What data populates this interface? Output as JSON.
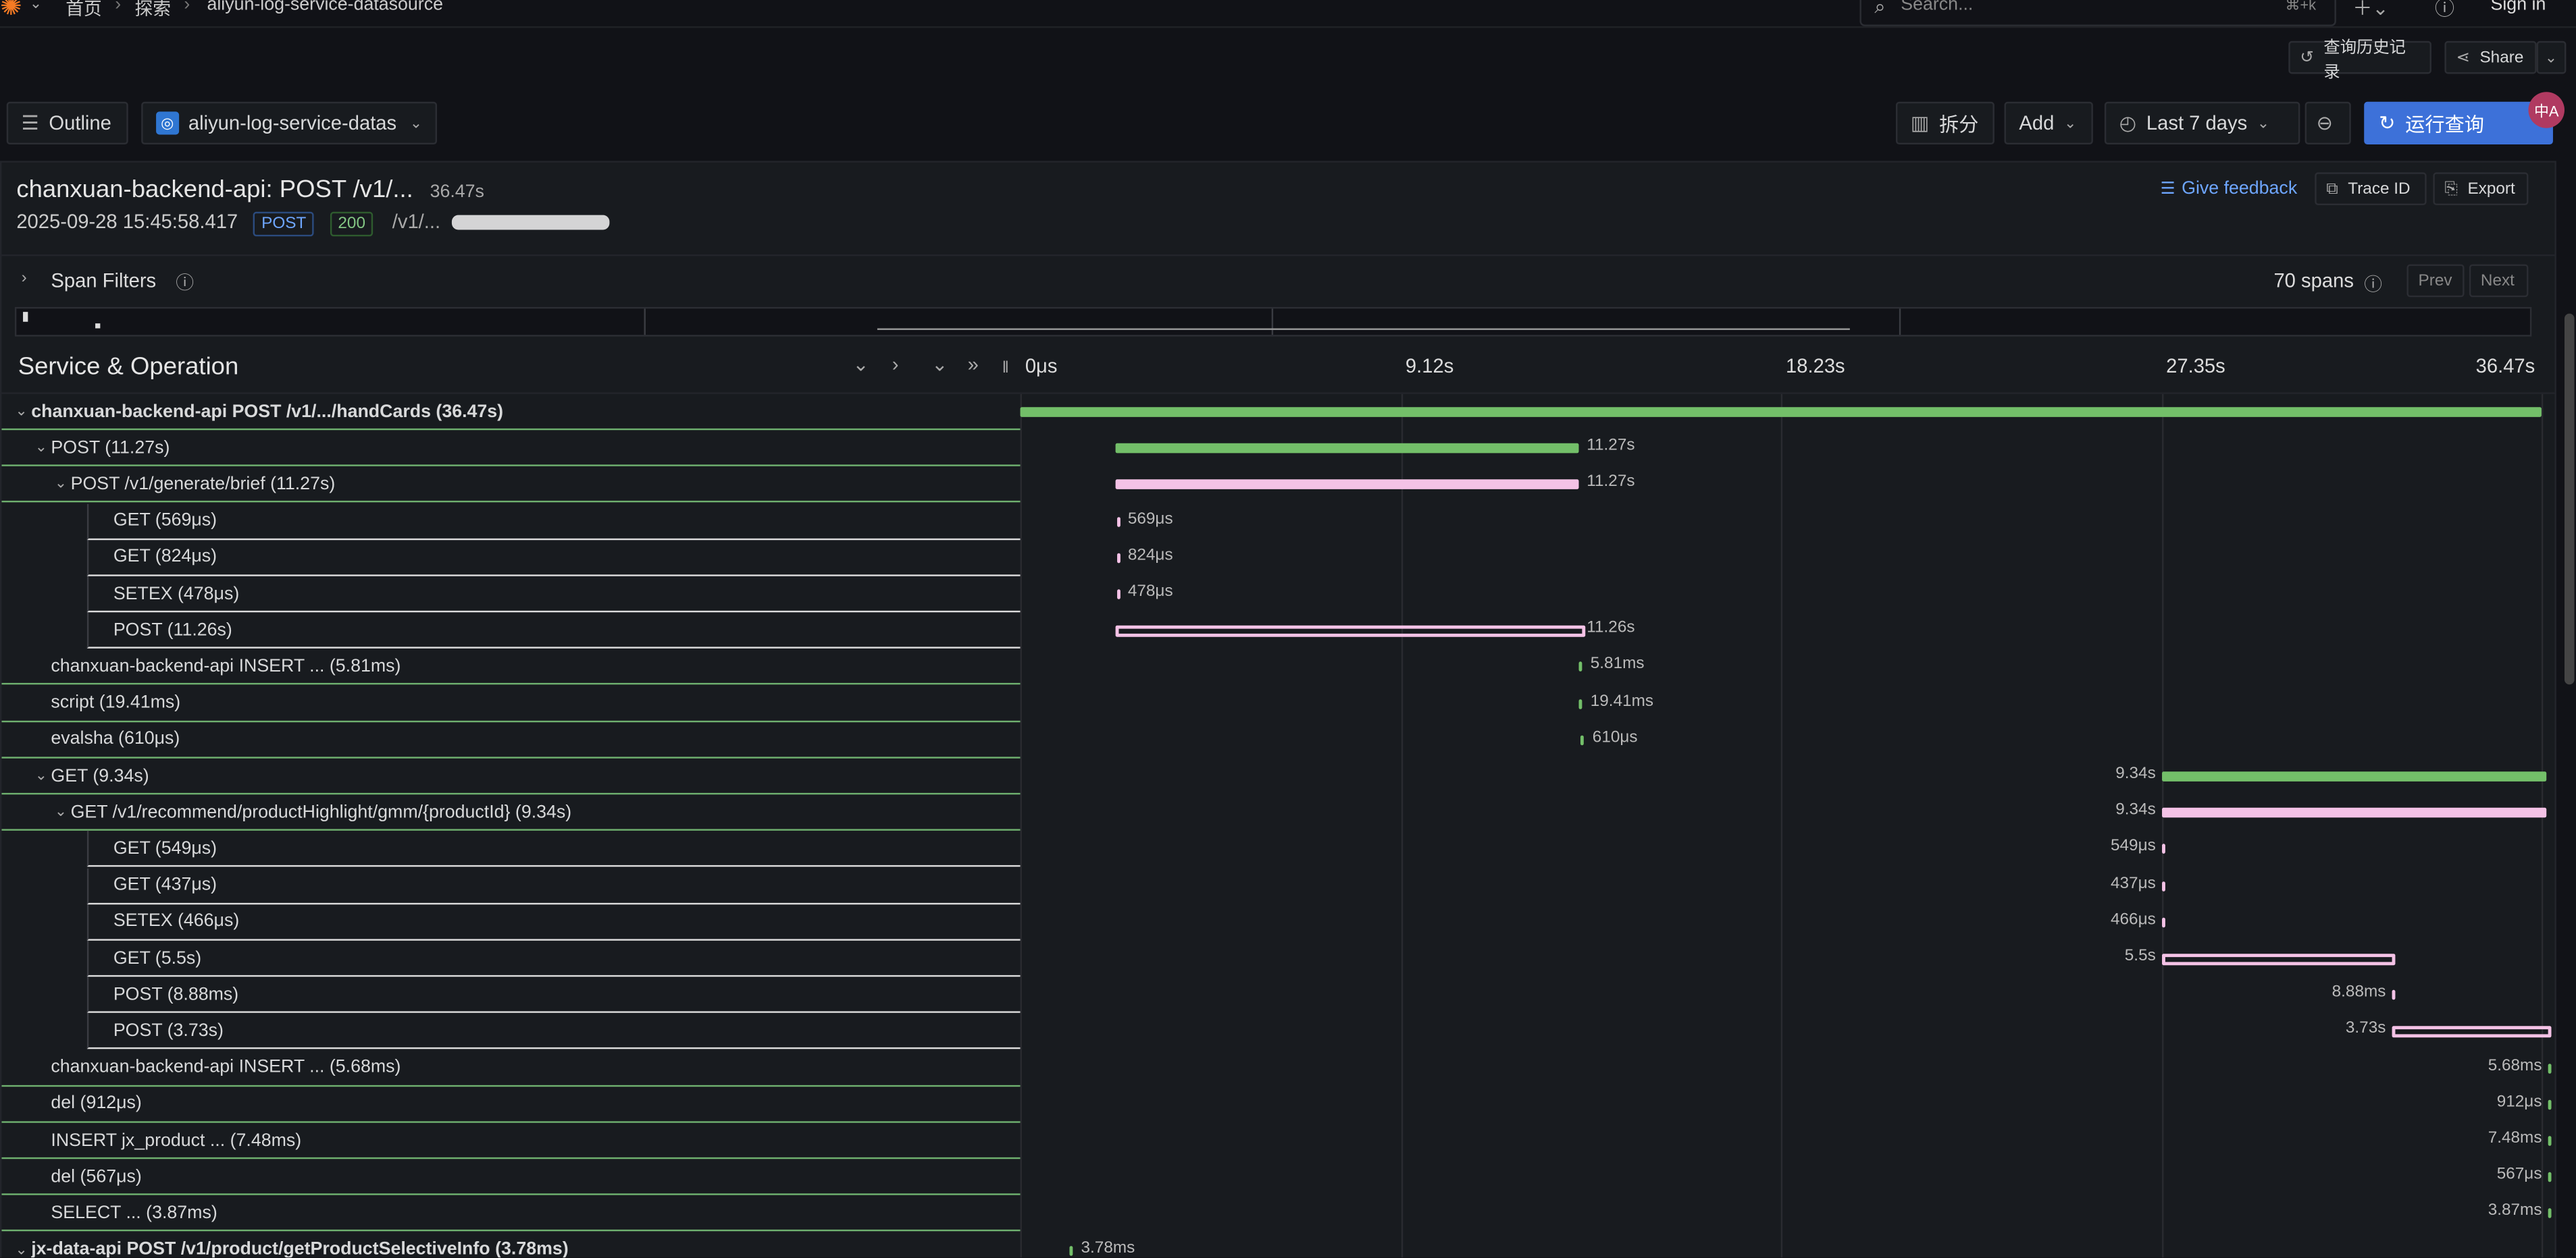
{
  "breadcrumb": {
    "home": "首页",
    "explore": "探索",
    "datasource": "aliyun-log-service-datasource"
  },
  "search": {
    "placeholder": "Search...",
    "shortcut": "⌘+k"
  },
  "header": {
    "sign_in": "Sign in"
  },
  "toolbar2": {
    "history": "查询历史记录",
    "share": "Share"
  },
  "toolbar": {
    "outline": "Outline",
    "datasource": "aliyun-log-service-datas",
    "split": "拆分",
    "add": "Add",
    "time_range": "Last 7 days",
    "run": "运行查询",
    "avatar": "中A"
  },
  "trace": {
    "title": "chanxuan-backend-api: POST /v1/...",
    "title_duration": "36.47s",
    "start": "2025-09-28 15:45:58.417",
    "method": "POST",
    "status": "200",
    "path": "/v1/...",
    "give_feedback": "Give feedback",
    "trace_id": "Trace ID",
    "export": "Export"
  },
  "span_filters": {
    "label": "Span Filters",
    "count": "70 spans",
    "prev": "Prev",
    "next": "Next"
  },
  "timeline": {
    "column_header": "Service & Operation",
    "ticks": [
      "0μs",
      "9.12s",
      "18.23s",
      "27.35s",
      "36.47s"
    ],
    "total_seconds": 36.47
  },
  "spans": [
    {
      "label": "chanxuan-backend-api  POST /v1/.../handCards (36.47s)",
      "indent": 0,
      "start": 0,
      "dur": 36.47,
      "dur_label": "",
      "color": "green",
      "caret": true
    },
    {
      "label": "POST (11.27s)",
      "indent": 1,
      "start": 1.12,
      "dur": 11.27,
      "dur_label": "11.27s",
      "color": "green",
      "caret": true
    },
    {
      "label": "POST /v1/generate/brief (11.27s)",
      "indent": 2,
      "start": 1.12,
      "dur": 11.27,
      "dur_label": "11.27s",
      "color": "pink",
      "caret": true
    },
    {
      "label": "GET (569μs)",
      "indent": 3,
      "start": 1.14,
      "dur": 0,
      "dur_label": "569μs",
      "color": "pink"
    },
    {
      "label": "GET (824μs)",
      "indent": 3,
      "start": 1.14,
      "dur": 0,
      "dur_label": "824μs",
      "color": "pink"
    },
    {
      "label": "SETEX (478μs)",
      "indent": 3,
      "start": 1.14,
      "dur": 0,
      "dur_label": "478μs",
      "color": "pink"
    },
    {
      "label": "POST (11.26s)",
      "indent": 3,
      "start": 1.13,
      "dur": 11.26,
      "dur_label": "11.26s",
      "color": "pink",
      "outline": true
    },
    {
      "label": "chanxuan-backend-api  INSERT ... (5.81ms)",
      "indent": 1,
      "start": 12.4,
      "dur": 0,
      "dur_label": "5.81ms",
      "color": "green"
    },
    {
      "label": "script (19.41ms)",
      "indent": 1,
      "start": 12.4,
      "dur": 0,
      "dur_label": "19.41ms",
      "color": "green"
    },
    {
      "label": "evalsha (610μs)",
      "indent": 1,
      "start": 12.45,
      "dur": 0,
      "dur_label": "610μs",
      "color": "green"
    },
    {
      "label": "GET (9.34s)",
      "indent": 1,
      "start": 26.6,
      "dur": 9.34,
      "dur_label": "9.34s",
      "color": "green",
      "caret": true,
      "label_left": true
    },
    {
      "label": "GET /v1/recommend/productHighlight/gmm/{productId} (9.34s)",
      "indent": 2,
      "start": 26.6,
      "dur": 9.34,
      "dur_label": "9.34s",
      "color": "pink",
      "caret": true,
      "label_left": true
    },
    {
      "label": "GET (549μs)",
      "indent": 3,
      "start": 26.6,
      "dur": 0,
      "dur_label": "549μs",
      "color": "pink",
      "label_left": true
    },
    {
      "label": "GET (437μs)",
      "indent": 3,
      "start": 26.6,
      "dur": 0,
      "dur_label": "437μs",
      "color": "pink",
      "label_left": true
    },
    {
      "label": "SETEX (466μs)",
      "indent": 3,
      "start": 26.6,
      "dur": 0,
      "dur_label": "466μs",
      "color": "pink",
      "label_left": true
    },
    {
      "label": "GET (5.5s)",
      "indent": 3,
      "start": 26.6,
      "dur": 5.5,
      "dur_label": "5.5s",
      "color": "pink",
      "label_left": true,
      "outline": true
    },
    {
      "label": "POST (8.88ms)",
      "indent": 3,
      "start": 32.2,
      "dur": 0,
      "dur_label": "8.88ms",
      "color": "pink",
      "label_left": true
    },
    {
      "label": "POST (3.73s)",
      "indent": 3,
      "start": 32.2,
      "dur": 3.73,
      "dur_label": "3.73s",
      "color": "pink",
      "label_left": true,
      "outline": true
    },
    {
      "label": "chanxuan-backend-api  INSERT ... (5.68ms)",
      "indent": 1,
      "start": 36.0,
      "dur": 0,
      "dur_label": "5.68ms",
      "color": "green",
      "label_left": true
    },
    {
      "label": "del (912μs)",
      "indent": 1,
      "start": 36.0,
      "dur": 0,
      "dur_label": "912μs",
      "color": "green",
      "label_left": true
    },
    {
      "label": "INSERT jx_product ... (7.48ms)",
      "indent": 1,
      "start": 36.0,
      "dur": 0,
      "dur_label": "7.48ms",
      "color": "green",
      "label_left": true
    },
    {
      "label": "del (567μs)",
      "indent": 1,
      "start": 36.0,
      "dur": 0,
      "dur_label": "567μs",
      "color": "green",
      "label_left": true
    },
    {
      "label": "SELECT ... (3.87ms)",
      "indent": 1,
      "start": 36.0,
      "dur": 0,
      "dur_label": "3.87ms",
      "color": "green",
      "label_left": true
    },
    {
      "label": "jx-data-api  POST /v1/product/getProductSelectiveInfo (3.78ms)",
      "indent": 0,
      "start": 0,
      "dur": 0,
      "dur_label": "3.78ms",
      "color": "green",
      "caret": true
    }
  ]
}
